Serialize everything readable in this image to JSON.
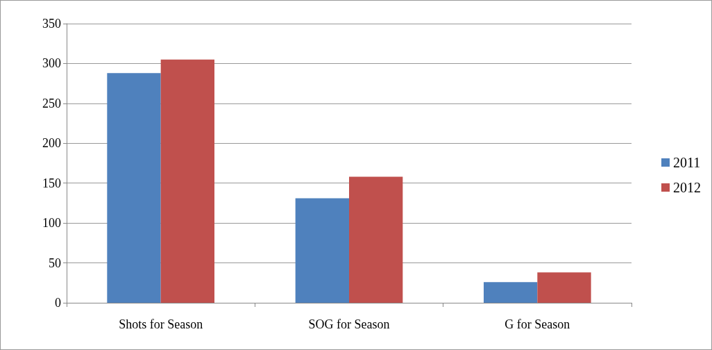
{
  "chart_data": {
    "type": "bar",
    "categories": [
      "Shots for Season",
      "SOG for Season",
      "G for Season"
    ],
    "series": [
      {
        "name": "2011",
        "color": "#4f81bd",
        "values": [
          288,
          131,
          26
        ]
      },
      {
        "name": "2012",
        "color": "#c0504d",
        "values": [
          305,
          158,
          38
        ]
      }
    ],
    "ylim": [
      0,
      350
    ],
    "yticks": [
      0,
      50,
      100,
      150,
      200,
      250,
      300,
      350
    ],
    "grid": "y",
    "legend": "right"
  }
}
